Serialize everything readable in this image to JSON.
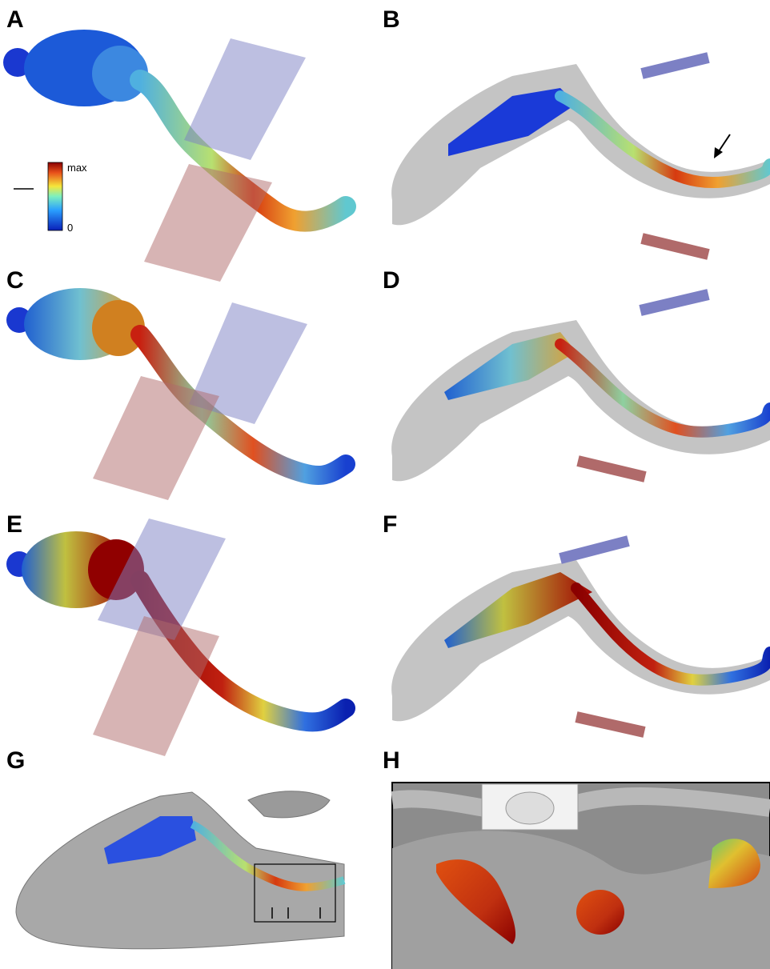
{
  "panels": [
    {
      "label": "A"
    },
    {
      "label": "B"
    },
    {
      "label": "C"
    },
    {
      "label": "D"
    },
    {
      "label": "E"
    },
    {
      "label": "F"
    },
    {
      "label": "G"
    },
    {
      "label": "H"
    }
  ],
  "colorbar": {
    "max_label": "max",
    "min_label": "0"
  }
}
